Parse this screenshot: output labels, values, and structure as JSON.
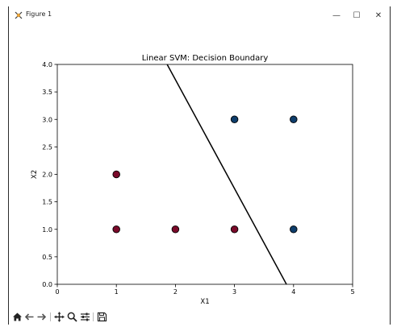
{
  "window": {
    "title": "Figure 1",
    "icon": "matplotlib-icon",
    "controls": [
      "minimize-icon",
      "maximize-icon",
      "close-icon"
    ],
    "minimize_glyph": "—",
    "maximize_glyph": "☐",
    "close_glyph": "✕"
  },
  "toolbar": {
    "tools": [
      "home-icon",
      "back-icon",
      "forward-icon",
      "pan-icon",
      "zoom-icon",
      "configure-subplots-icon",
      "save-icon"
    ]
  },
  "chart_data": {
    "type": "scatter",
    "title": "Linear SVM: Decision Boundary",
    "xlabel": "X1",
    "ylabel": "X2",
    "xlim": [
      0,
      5
    ],
    "ylim": [
      0,
      4
    ],
    "xticks": [
      "0",
      "1",
      "2",
      "3",
      "4",
      "5"
    ],
    "yticks": [
      "0.0",
      "0.5",
      "1.0",
      "1.5",
      "2.0",
      "2.5",
      "3.0",
      "3.5",
      "4.0"
    ],
    "grid": false,
    "legend": "none",
    "series": [
      {
        "class": "negative",
        "color": "#7a0a2a",
        "points": [
          [
            1,
            2
          ],
          [
            1,
            1
          ],
          [
            2,
            1
          ],
          [
            3,
            1
          ]
        ]
      },
      {
        "class": "positive",
        "color": "#0e3d6b",
        "points": [
          [
            3,
            3
          ],
          [
            4,
            3
          ],
          [
            4,
            1
          ]
        ]
      }
    ],
    "decision_boundary": {
      "color": "#000000",
      "points": [
        [
          1.86,
          4.0
        ],
        [
          3.88,
          0.0
        ]
      ]
    }
  }
}
